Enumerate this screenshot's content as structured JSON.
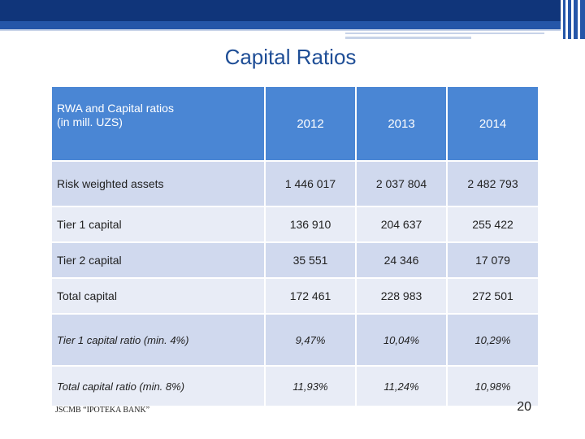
{
  "slide": {
    "title": "Capital Ratios",
    "footer": "JSCMB “IPOTEKA BANK”",
    "page_number": "20"
  },
  "table": {
    "header": {
      "label_line1": "RWA and Capital ratios",
      "label_line2": "(in mill. UZS)",
      "years": [
        "2012",
        "2013",
        "2014"
      ]
    },
    "rows": [
      {
        "label": "Risk weighted assets",
        "values": [
          "1 446 017",
          "2 037 804",
          "2 482 793"
        ]
      },
      {
        "label": "Tier 1 capital",
        "values": [
          "136 910",
          "204 637",
          "255 422"
        ]
      },
      {
        "label": "Tier 2 capital",
        "values": [
          "35 551",
          "24 346",
          "17 079"
        ]
      },
      {
        "label": "Total capital",
        "values": [
          "172 461",
          "228 983",
          "272 501"
        ]
      },
      {
        "label": "Tier 1 capital ratio (min. 4%)",
        "values": [
          "9,47%",
          "10,04%",
          "10,29%"
        ]
      },
      {
        "label": "Total capital ratio (min. 8%)",
        "values": [
          "11,93%",
          "11,24%",
          "10,98%"
        ]
      }
    ]
  },
  "colors": {
    "header_bg": "#4a86d4",
    "row_shade": "#d0d9ee",
    "row_light": "#e8ecf6",
    "title_color": "#1f4e96",
    "band_dark": "#10357a",
    "band_mid": "#2556a8"
  }
}
